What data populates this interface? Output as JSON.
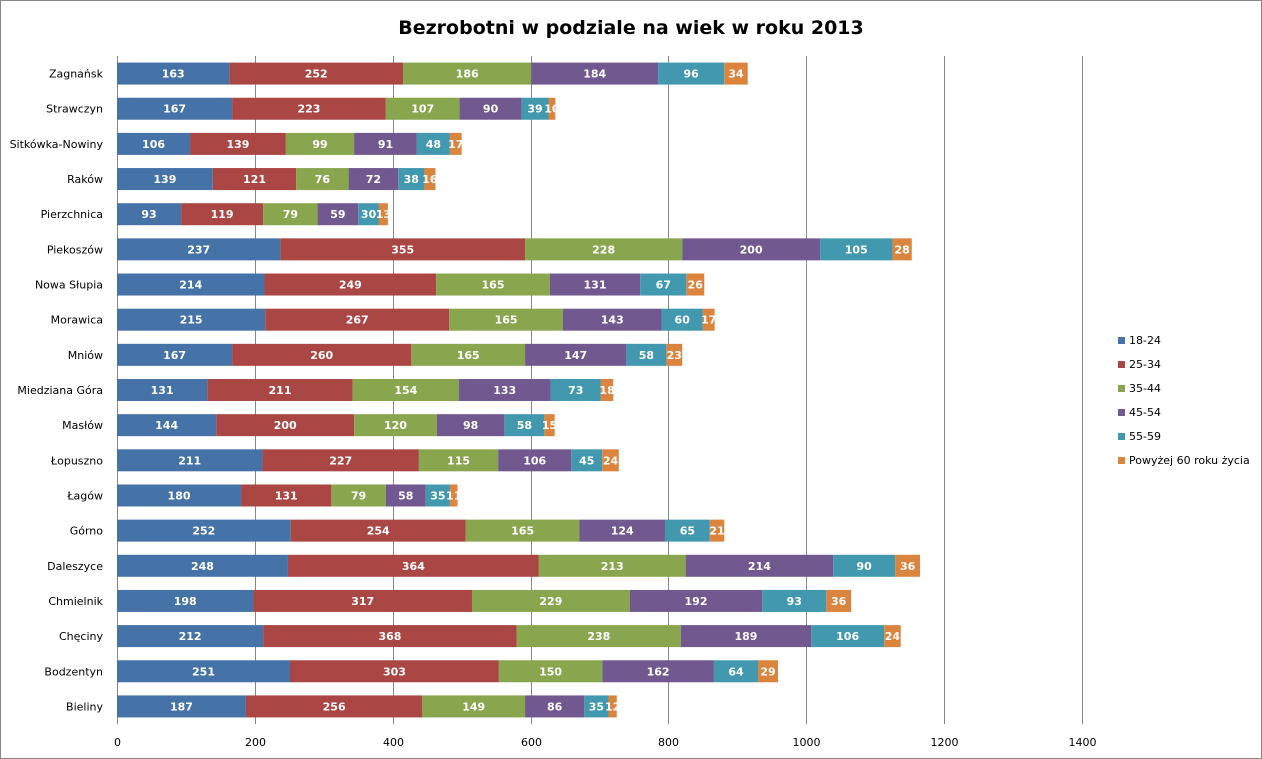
{
  "chart_data": {
    "type": "bar",
    "orientation": "horizontal",
    "stacked": true,
    "title": "Bezrobotni w podziale na wiek w roku 2013",
    "xlabel": "",
    "ylabel": "",
    "xlim": [
      0,
      1400
    ],
    "xticks": [
      0,
      200,
      400,
      600,
      800,
      1000,
      1200,
      1400
    ],
    "grid": "vertical",
    "legend_position": "right",
    "categories": [
      "Zagnańsk",
      "Strawczyn",
      "Sitkówka-Nowiny",
      "Raków",
      "Pierzchnica",
      "Piekoszów",
      "Nowa Słupia",
      "Morawica",
      "Mniów",
      "Miedziana Góra",
      "Masłów",
      "Łopuszno",
      "Łagów",
      "Górno",
      "Daleszyce",
      "Chmielnik",
      "Chęciny",
      "Bodzentyn",
      "Bieliny"
    ],
    "series": [
      {
        "name": "18-24",
        "color": "#4572A7",
        "values": [
          163,
          167,
          106,
          139,
          93,
          237,
          214,
          215,
          167,
          131,
          144,
          211,
          180,
          252,
          248,
          198,
          212,
          251,
          187
        ]
      },
      {
        "name": "25-34",
        "color": "#AA4643",
        "values": [
          252,
          223,
          139,
          121,
          119,
          355,
          249,
          267,
          260,
          211,
          200,
          227,
          131,
          254,
          364,
          317,
          368,
          303,
          256
        ]
      },
      {
        "name": "35-44",
        "color": "#89A54E",
        "values": [
          186,
          107,
          99,
          76,
          79,
          228,
          165,
          165,
          165,
          154,
          120,
          115,
          79,
          165,
          213,
          229,
          238,
          150,
          149
        ]
      },
      {
        "name": "45-54",
        "color": "#71588F",
        "values": [
          184,
          90,
          91,
          72,
          59,
          200,
          131,
          143,
          147,
          133,
          98,
          106,
          58,
          124,
          214,
          192,
          189,
          162,
          86
        ]
      },
      {
        "name": "55-59",
        "color": "#4198AF",
        "values": [
          96,
          39,
          48,
          38,
          30,
          105,
          67,
          60,
          58,
          73,
          58,
          45,
          35,
          65,
          90,
          93,
          106,
          64,
          35
        ]
      },
      {
        "name": "Powyżej 60 roku życia",
        "color": "#DB843D",
        "values": [
          34,
          10,
          17,
          16,
          13,
          28,
          26,
          17,
          23,
          18,
          15,
          24,
          11,
          21,
          36,
          36,
          24,
          29,
          12
        ]
      }
    ]
  }
}
